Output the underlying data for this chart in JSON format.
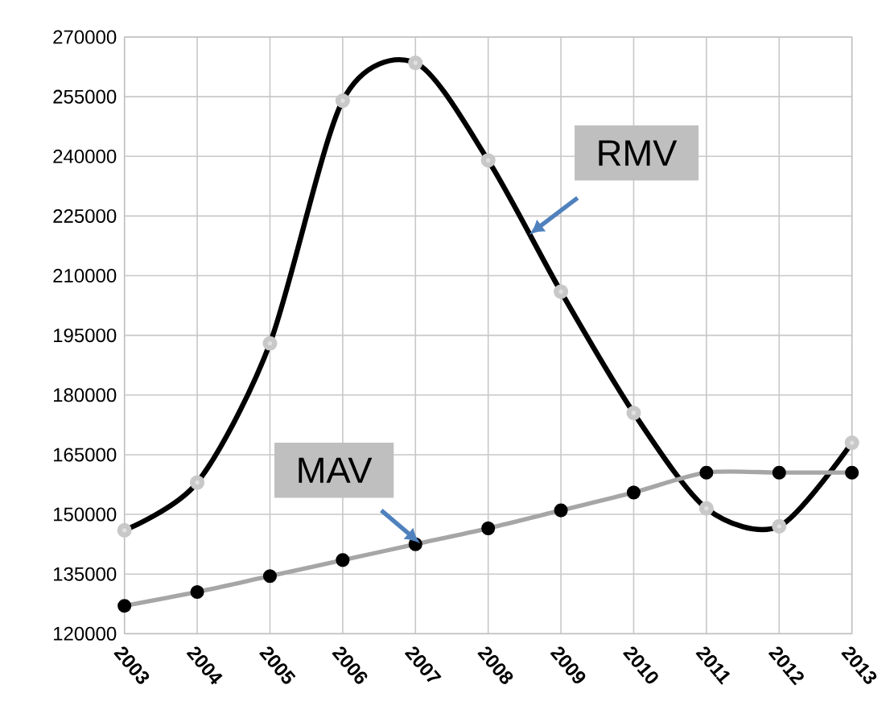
{
  "chart_data": {
    "type": "line",
    "x": [
      2003,
      2004,
      2005,
      2006,
      2007,
      2008,
      2009,
      2010,
      2011,
      2012,
      2013
    ],
    "series": [
      {
        "name": "RMV",
        "color": "#000000",
        "values": [
          146000,
          158000,
          193000,
          254000,
          263500,
          239000,
          206000,
          175500,
          151500,
          147000,
          168000
        ]
      },
      {
        "name": "MAV",
        "color": "#a6a6a6",
        "values": [
          127000,
          130500,
          134500,
          138500,
          142500,
          146500,
          151000,
          155500,
          160500,
          160500,
          160500
        ]
      }
    ],
    "xlim": [
      2003,
      2013
    ],
    "xticks": [
      2003,
      2004,
      2005,
      2006,
      2007,
      2008,
      2009,
      2010,
      2011,
      2012,
      2013
    ],
    "ylim": [
      120000,
      270000
    ],
    "yticks": [
      120000,
      135000,
      150000,
      165000,
      180000,
      195000,
      210000,
      225000,
      240000,
      255000,
      270000
    ],
    "grid": true,
    "legend": false,
    "marker": "circle",
    "line_style": "solid"
  }
}
